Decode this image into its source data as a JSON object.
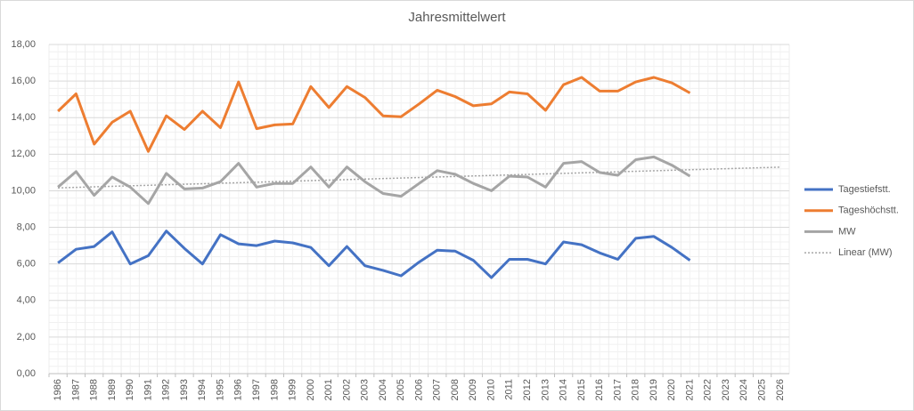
{
  "chart_data": {
    "type": "line",
    "title": "Jahresmittelwert",
    "categories": [
      "1986",
      "1987",
      "1988",
      "1989",
      "1990",
      "1991",
      "1992",
      "1993",
      "1994",
      "1995",
      "1996",
      "1997",
      "1998",
      "1999",
      "2000",
      "2001",
      "2002",
      "2003",
      "2004",
      "2005",
      "2006",
      "2007",
      "2008",
      "2009",
      "2010",
      "2011",
      "2012",
      "2013",
      "2014",
      "2015",
      "2016",
      "2017",
      "2018",
      "2019",
      "2020",
      "2021",
      "2022",
      "2023",
      "2024",
      "2025",
      "2026"
    ],
    "series": [
      {
        "name": "Tagestiefstt.",
        "color": "#4472c4",
        "values": [
          6.05,
          6.8,
          6.95,
          7.75,
          6.0,
          6.45,
          7.8,
          6.85,
          6.0,
          7.6,
          7.1,
          7.0,
          7.25,
          7.15,
          6.9,
          5.9,
          6.95,
          5.9,
          5.65,
          5.35,
          6.1,
          6.75,
          6.7,
          6.2,
          5.25,
          6.25,
          6.25,
          6.0,
          7.2,
          7.05,
          6.6,
          6.25,
          7.4,
          7.5,
          6.9,
          6.2,
          null,
          null,
          null,
          null,
          null
        ]
      },
      {
        "name": "Tageshöchstt.",
        "color": "#ed7d31",
        "values": [
          14.35,
          15.3,
          12.55,
          13.75,
          14.35,
          12.15,
          14.1,
          13.35,
          14.35,
          13.45,
          15.95,
          13.4,
          13.6,
          13.65,
          15.7,
          14.55,
          15.7,
          15.1,
          14.1,
          14.05,
          14.75,
          15.5,
          15.15,
          14.65,
          14.75,
          15.4,
          15.3,
          14.4,
          15.8,
          16.2,
          15.45,
          15.45,
          15.95,
          16.2,
          15.9,
          15.35,
          null,
          null,
          null,
          null,
          null
        ]
      },
      {
        "name": "MW",
        "color": "#a5a5a5",
        "values": [
          10.2,
          11.05,
          9.75,
          10.75,
          10.2,
          9.3,
          10.95,
          10.1,
          10.15,
          10.5,
          11.5,
          10.2,
          10.4,
          10.4,
          11.3,
          10.2,
          11.3,
          10.5,
          9.85,
          9.7,
          10.4,
          11.1,
          10.9,
          10.4,
          10.0,
          10.8,
          10.75,
          10.2,
          11.5,
          11.6,
          11.0,
          10.85,
          11.7,
          11.85,
          11.4,
          10.8,
          null,
          null,
          null,
          null,
          null
        ],
        "trendline": {
          "name": "Linear (MW)",
          "type": "linear",
          "color": "#a6a6a6",
          "dashed": true
        }
      }
    ],
    "ylim": [
      0,
      18
    ],
    "yticks": [
      {
        "value": 0,
        "label": "0,00"
      },
      {
        "value": 2,
        "label": "2,00"
      },
      {
        "value": 4,
        "label": "4,00"
      },
      {
        "value": 6,
        "label": "6,00"
      },
      {
        "value": 8,
        "label": "8,00"
      },
      {
        "value": 10,
        "label": "10,00"
      },
      {
        "value": 12,
        "label": "12,00"
      },
      {
        "value": 14,
        "label": "14,00"
      },
      {
        "value": 16,
        "label": "16,00"
      },
      {
        "value": 18,
        "label": "18,00"
      }
    ],
    "grid": true,
    "minor_grid": true,
    "legend": "right"
  }
}
